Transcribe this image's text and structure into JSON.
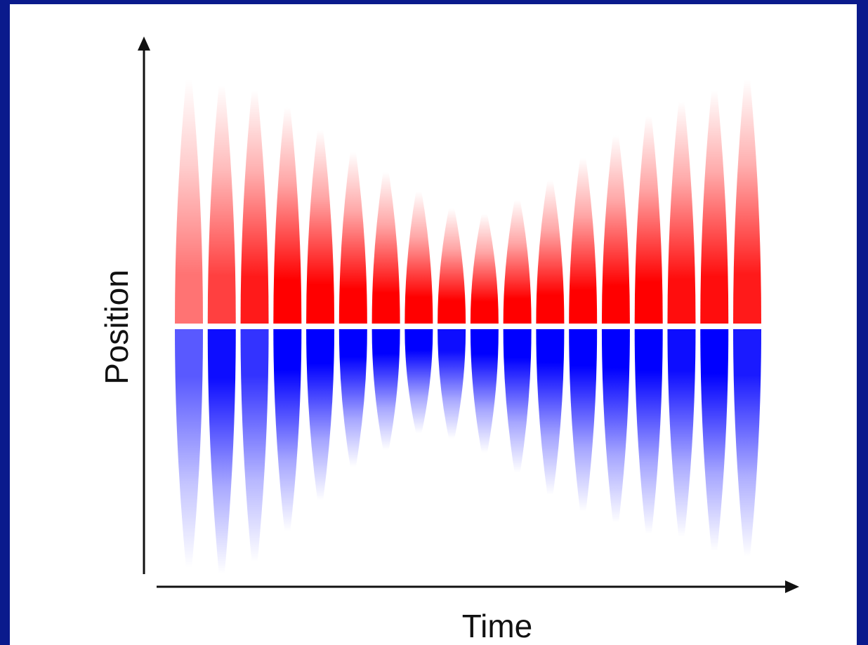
{
  "chart_data": {
    "type": "heatmap",
    "title": "",
    "xlabel": "Time",
    "ylabel": "Position",
    "colors": {
      "positive": "#ff0000",
      "negative": "#0000ff",
      "background": "#ffffff",
      "frame": "#0a1a8c"
    },
    "ylim": [
      -1,
      1
    ],
    "boundary": 0,
    "pulses": [
      {
        "t": 1,
        "top": 0.88,
        "bottom": -0.86,
        "pos_strength": 0.55,
        "neg_strength": 0.65
      },
      {
        "t": 2,
        "top": 0.86,
        "bottom": -0.88,
        "pos_strength": 0.75,
        "neg_strength": 0.95
      },
      {
        "t": 3,
        "top": 0.84,
        "bottom": -0.84,
        "pos_strength": 0.9,
        "neg_strength": 0.8
      },
      {
        "t": 4,
        "top": 0.78,
        "bottom": -0.73,
        "pos_strength": 1.0,
        "neg_strength": 1.0
      },
      {
        "t": 5,
        "top": 0.7,
        "bottom": -0.62,
        "pos_strength": 1.0,
        "neg_strength": 1.0
      },
      {
        "t": 6,
        "top": 0.62,
        "bottom": -0.5,
        "pos_strength": 1.0,
        "neg_strength": 1.0
      },
      {
        "t": 7,
        "top": 0.55,
        "bottom": -0.44,
        "pos_strength": 1.0,
        "neg_strength": 1.0
      },
      {
        "t": 8,
        "top": 0.48,
        "bottom": -0.38,
        "pos_strength": 1.0,
        "neg_strength": 1.0
      },
      {
        "t": 9,
        "top": 0.42,
        "bottom": -0.4,
        "pos_strength": 1.0,
        "neg_strength": 0.95
      },
      {
        "t": 10,
        "top": 0.4,
        "bottom": -0.45,
        "pos_strength": 1.0,
        "neg_strength": 1.0
      },
      {
        "t": 11,
        "top": 0.45,
        "bottom": -0.52,
        "pos_strength": 1.0,
        "neg_strength": 1.0
      },
      {
        "t": 12,
        "top": 0.52,
        "bottom": -0.6,
        "pos_strength": 1.0,
        "neg_strength": 1.0
      },
      {
        "t": 13,
        "top": 0.6,
        "bottom": -0.66,
        "pos_strength": 1.0,
        "neg_strength": 1.0
      },
      {
        "t": 14,
        "top": 0.68,
        "bottom": -0.7,
        "pos_strength": 1.0,
        "neg_strength": 1.0
      },
      {
        "t": 15,
        "top": 0.75,
        "bottom": -0.74,
        "pos_strength": 1.0,
        "neg_strength": 1.0
      },
      {
        "t": 16,
        "top": 0.8,
        "bottom": -0.75,
        "pos_strength": 0.95,
        "neg_strength": 0.95
      },
      {
        "t": 17,
        "top": 0.84,
        "bottom": -0.8,
        "pos_strength": 0.95,
        "neg_strength": 1.0
      },
      {
        "t": 18,
        "top": 0.88,
        "bottom": -0.82,
        "pos_strength": 0.9,
        "neg_strength": 0.9
      }
    ],
    "grid": false,
    "legend": "none"
  }
}
